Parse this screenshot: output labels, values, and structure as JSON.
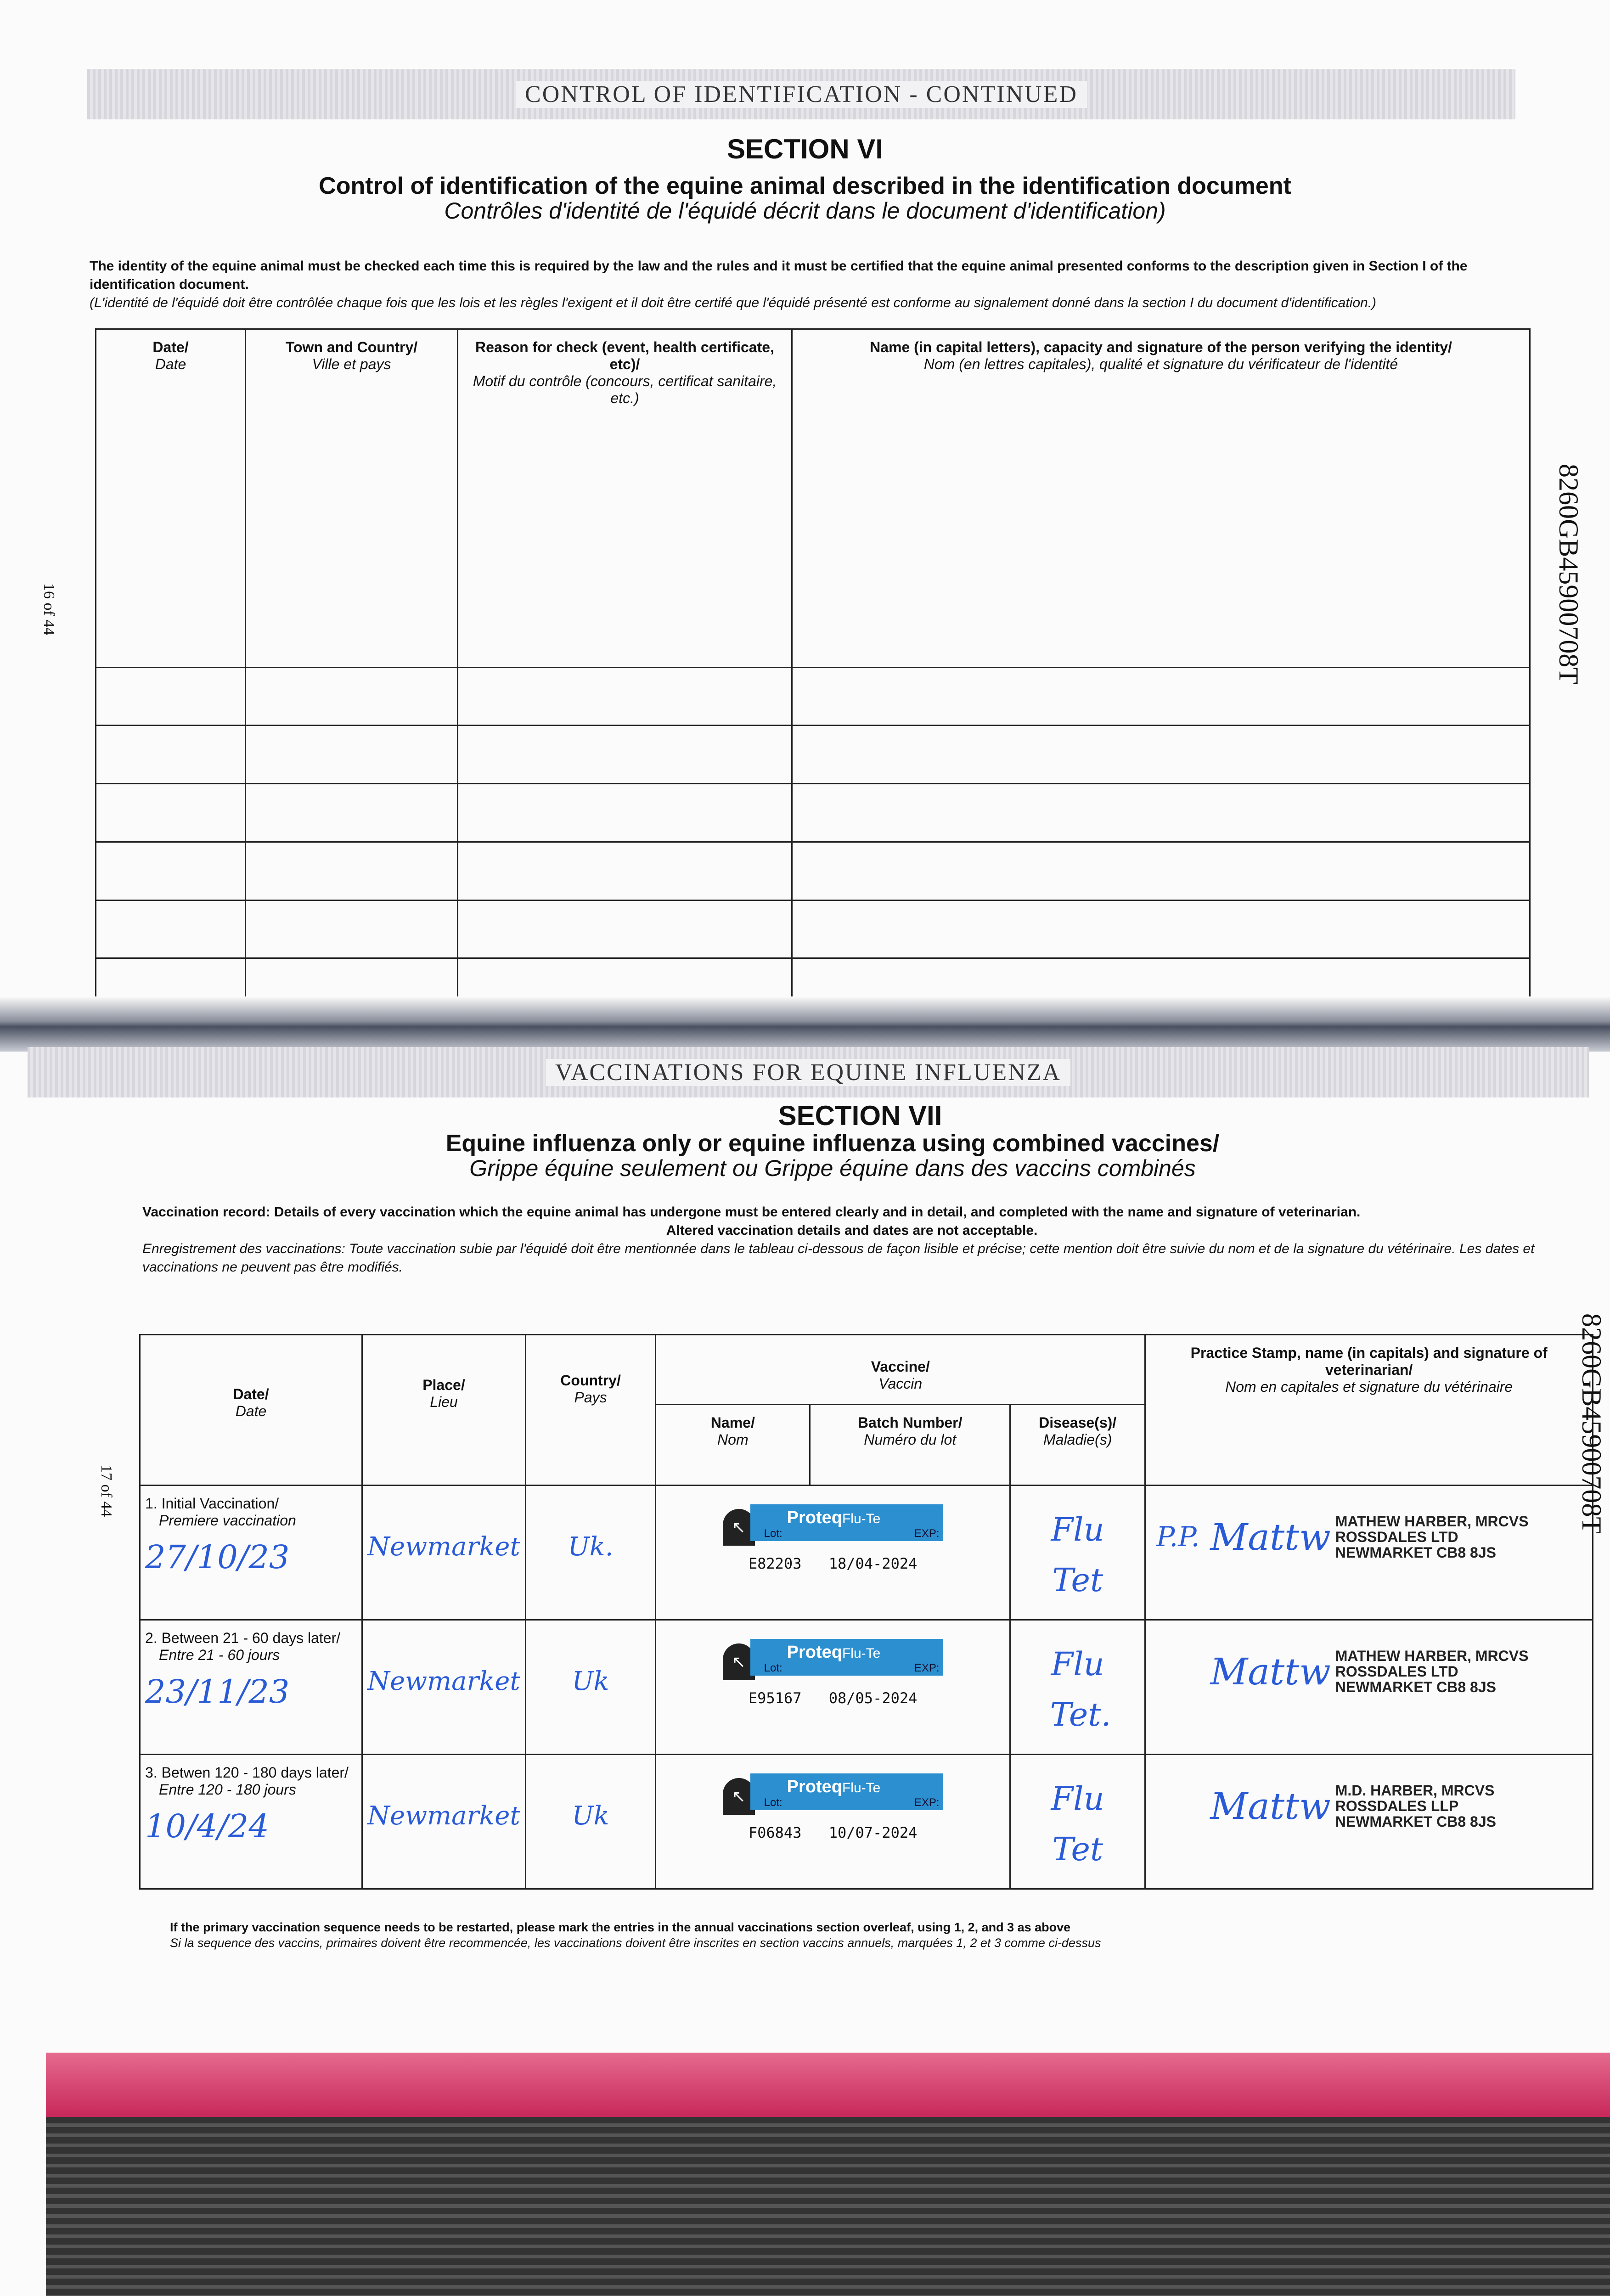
{
  "page_top": {
    "band": "CONTROL OF IDENTIFICATION - CONTINUED",
    "section": "SECTION VI",
    "title_en": "Control of identification of the equine animal described in the identification document",
    "title_fr": "Contrôles d'identité de l'équidé décrit dans le document d'identification)",
    "intro_en": "The identity of the equine animal must be checked each time this is required by the law and the rules and it must be certified that the equine animal presented conforms to the description given in Section I of the identification document.",
    "intro_fr": "(L'identité de l'équidé doit être contrôlée chaque fois que les lois et les règles l'exigent et il doit être certifé que l'équidé présenté est conforme au signalement donné dans la section I du document d'identification.)",
    "page_number": "16 of 44",
    "doc_id": "8260GB45900708T",
    "table": {
      "headers": [
        {
          "en": "Date/",
          "fr": "Date"
        },
        {
          "en": "Town and Country/",
          "fr": "Ville et pays"
        },
        {
          "en": "Reason for check (event, health certificate, etc)/",
          "fr": "Motif du contrôle (concours, certificat sanitaire, etc.)"
        },
        {
          "en": "Name (in capital letters), capacity and signature of the person verifying the identity/",
          "fr": "Nom (en lettres capitales), qualité et signature du vérificateur de l'identité"
        }
      ],
      "empty_rows": 6
    }
  },
  "page_bottom": {
    "band": "VACCINATIONS FOR EQUINE INFLUENZA",
    "section": "SECTION VII",
    "title_en": "Equine influenza only or equine influenza using combined vaccines/",
    "title_fr": "Grippe équine seulement ou Grippe équine dans des vaccins combinés",
    "intro_en": "Vaccination record: Details of every vaccination which the equine animal has undergone must be entered clearly and in detail, and completed with the name and signature of veterinarian.",
    "intro_en2": "Altered vaccination details and dates are not acceptable.",
    "intro_fr": "Enregistrement des vaccinations: Toute vaccination subie par l'équidé doit être mentionnée dans le tableau ci-dessous de façon lisible et précise; cette mention doit être suivie du nom et de la signature du vétérinaire. Les dates et vaccinations ne peuvent pas être modifiés.",
    "page_number": "17 of 44",
    "doc_id": "8260GB45900708T",
    "headers": {
      "date": {
        "en": "Date/",
        "fr": "Date"
      },
      "place": {
        "en": "Place/",
        "fr": "Lieu"
      },
      "country": {
        "en": "Country/",
        "fr": "Pays"
      },
      "vaccine": {
        "en": "Vaccine/",
        "fr": "Vaccin"
      },
      "name": {
        "en": "Name/",
        "fr": "Nom"
      },
      "batch": {
        "en": "Batch Number/",
        "fr": "Numéro du lot"
      },
      "disease": {
        "en": "Disease(s)/",
        "fr": "Maladie(s)"
      },
      "stamp": {
        "en": "Practice Stamp, name (in capitals) and signature of veterinarian/",
        "fr": "Nom en capitales et signature du vétérinaire"
      }
    },
    "rows": [
      {
        "label_en": "1. Initial Vaccination/",
        "label_fr": "Premiere vaccination",
        "date": "27/10/23",
        "place": "Newmarket",
        "country": "Uk.",
        "brand": "Proteq",
        "product": "Flu-Te",
        "lot_label": "Lot:",
        "exp_label": "EXP:",
        "lot": "E82203",
        "exp": "18/04-2024",
        "diseases": "Flu Tet",
        "pp": "P.P.",
        "signature": "Mattw",
        "stamp": [
          "MATHEW HARBER, MRCVS",
          "ROSSDALES LTD",
          "NEWMARKET CB8 8JS"
        ]
      },
      {
        "label_en": "2. Between 21 - 60 days later/",
        "label_fr": "Entre 21 - 60 jours",
        "date": "23/11/23",
        "place": "Newmarket",
        "country": "Uk",
        "brand": "Proteq",
        "product": "Flu-Te",
        "lot_label": "Lot:",
        "exp_label": "EXP:",
        "lot": "E95167",
        "exp": "08/05-2024",
        "diseases": "Flu Tet.",
        "pp": "",
        "signature": "Mattw",
        "stamp": [
          "MATHEW HARBER, MRCVS",
          "ROSSDALES LTD",
          "NEWMARKET CB8 8JS"
        ]
      },
      {
        "label_en": "3. Betwen 120 - 180 days later/",
        "label_fr": "Entre 120 - 180 jours",
        "date": "10/4/24",
        "place": "Newmarket",
        "country": "Uk",
        "brand": "Proteq",
        "product": "Flu-Te",
        "lot_label": "Lot:",
        "exp_label": "EXP:",
        "lot": "F06843",
        "exp": "10/07-2024",
        "diseases": "Flu Tet",
        "pp": "",
        "signature": "Mattw",
        "stamp": [
          "M.D. HARBER, MRCVS",
          "ROSSDALES LLP",
          "NEWMARKET CB8 8JS"
        ]
      }
    ],
    "footer_en": "If the primary vaccination sequence needs to be restarted, please mark the entries in the annual vaccinations section overleaf, using 1, 2, and 3 as above",
    "footer_fr": "Si la sequence des vaccins, primaires doivent être recommencée, les vaccinations doivent être inscrites en section vaccins annuels, marquées 1, 2 et 3 comme ci-dessus"
  },
  "colors": {
    "ink": "#2a5bd7",
    "label_blue": "#2b8fd0",
    "binding_pink": "#c8285a"
  }
}
